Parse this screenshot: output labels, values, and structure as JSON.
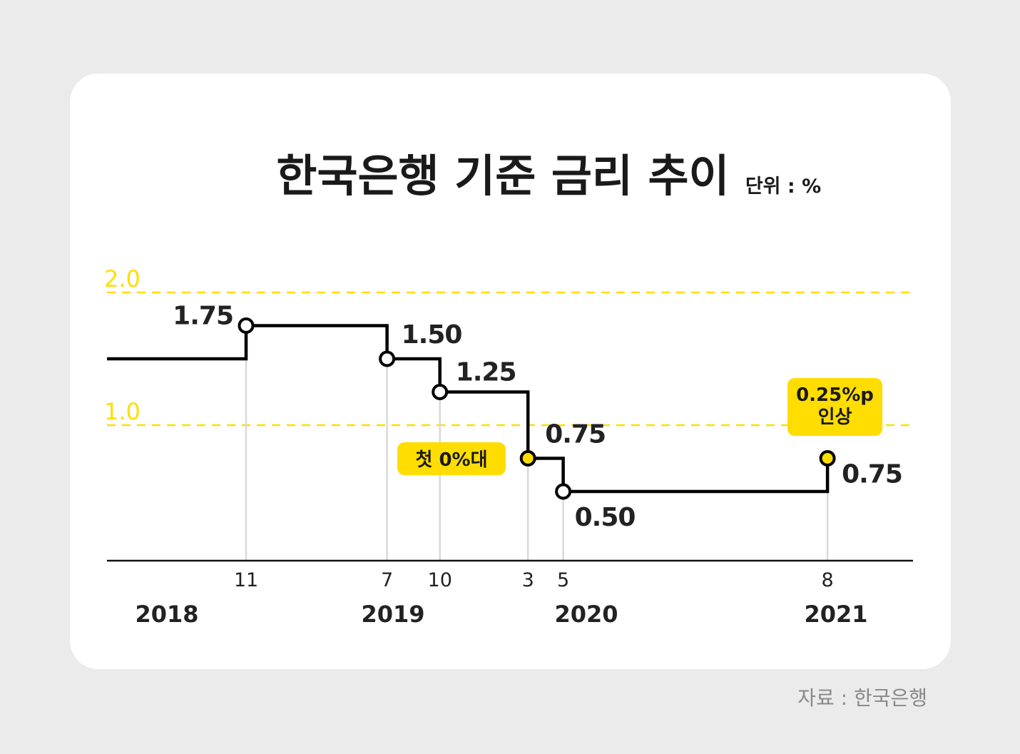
{
  "title": "한국은행 기준 금리 추이",
  "unit": "단위 : %",
  "source": "자료 : 한국은행",
  "colors": {
    "background": "#ebebeb",
    "card": "#ffffff",
    "accent": "#ffdd00",
    "line": "#000000",
    "grid": "#d9d9d9",
    "text": "#222222",
    "source_text": "#888888"
  },
  "chart_data": {
    "type": "line",
    "style": "step",
    "title": "한국은행 기준 금리 추이",
    "ylabel": "단위 : %",
    "ylim": [
      0,
      2.0
    ],
    "xlim": [
      "2018-03",
      "2022-08"
    ],
    "y_gridlines": [
      {
        "value": 2.0,
        "label": "2.0"
      },
      {
        "value": 1.0,
        "label": "1.0"
      }
    ],
    "initial_value": 1.5,
    "points": [
      {
        "date": "2018-11",
        "value": 1.75,
        "label": "1.75",
        "highlight": false
      },
      {
        "date": "2019-07",
        "value": 1.5,
        "label": "1.50",
        "highlight": false
      },
      {
        "date": "2019-10",
        "value": 1.25,
        "label": "1.25",
        "highlight": false
      },
      {
        "date": "2020-03",
        "value": 0.75,
        "label": "0.75",
        "highlight": true
      },
      {
        "date": "2020-05",
        "value": 0.5,
        "label": "0.50",
        "highlight": false
      },
      {
        "date": "2021-08",
        "value": 0.75,
        "label": "0.75",
        "highlight": true
      }
    ],
    "month_ticks": [
      "11",
      "7",
      "10",
      "3",
      "5",
      "8"
    ],
    "year_labels": [
      "2018",
      "2019",
      "2020",
      "2021"
    ],
    "annotations": [
      {
        "date": "2020-03",
        "lines": [
          "첫 0%대"
        ]
      },
      {
        "date": "2021-08",
        "lines": [
          "0.25%p",
          "인상"
        ]
      }
    ]
  }
}
